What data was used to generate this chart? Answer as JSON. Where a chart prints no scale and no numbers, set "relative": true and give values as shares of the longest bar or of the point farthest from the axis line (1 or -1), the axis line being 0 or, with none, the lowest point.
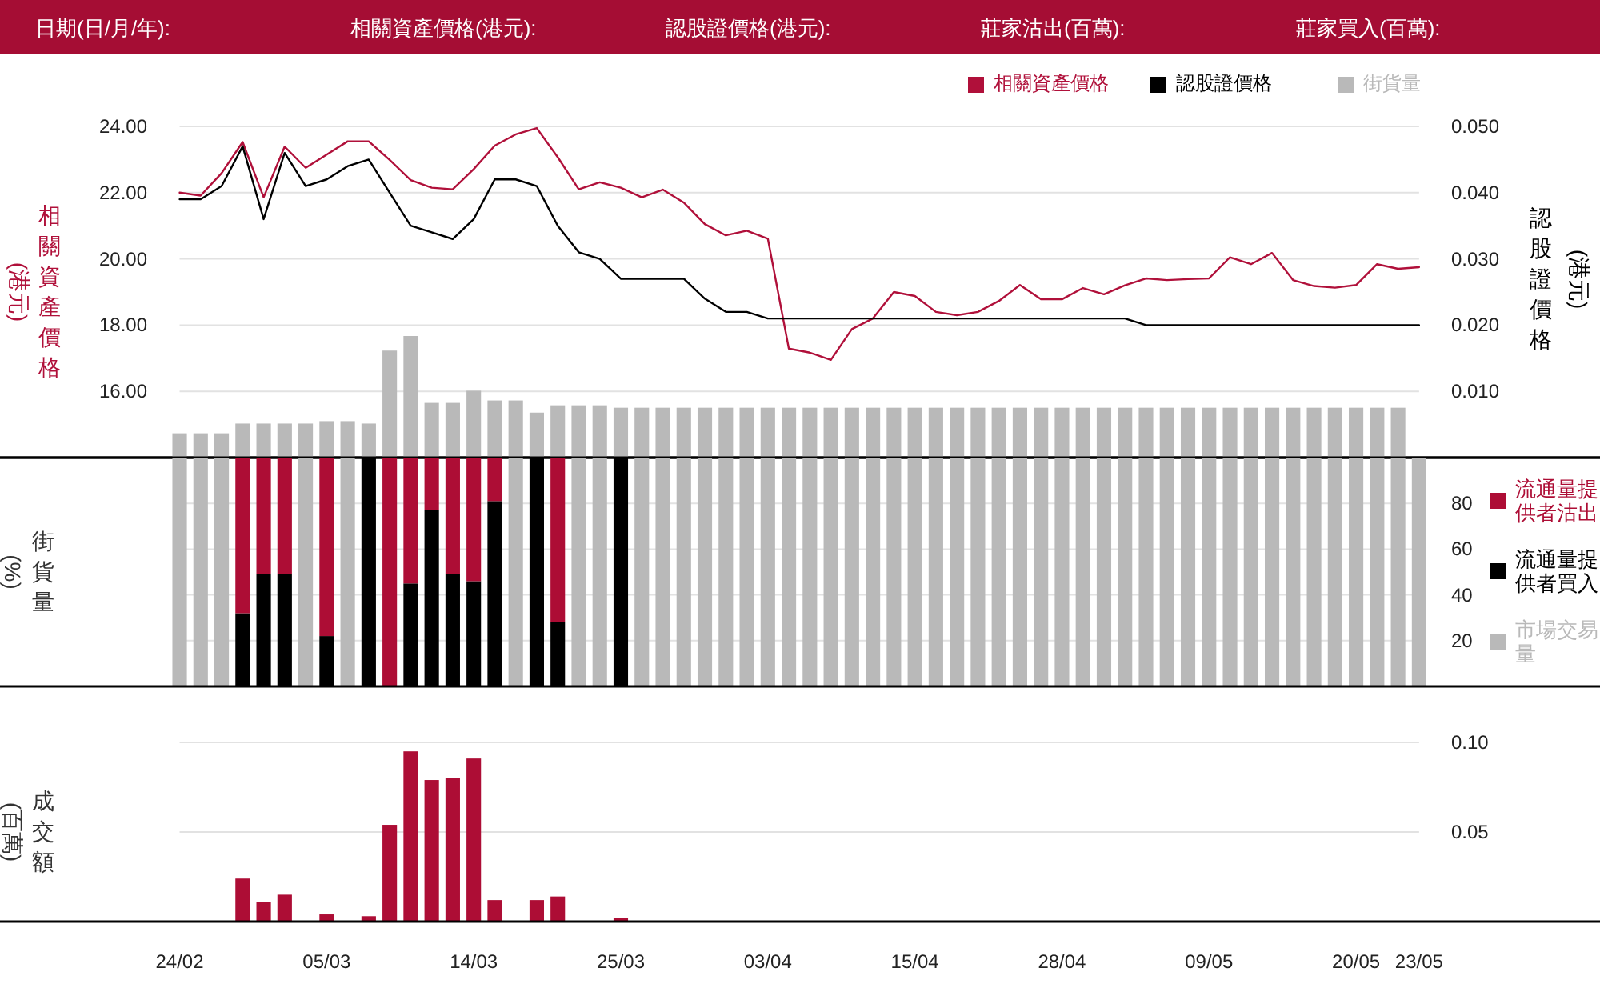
{
  "chart_data": [
    {
      "type": "line",
      "categories": [
        null,
        null,
        null,
        null,
        null,
        null,
        null,
        null,
        null,
        null,
        null,
        null,
        null,
        null,
        null,
        null,
        null,
        null,
        null,
        null,
        null,
        null,
        null,
        null,
        null,
        null,
        null,
        null,
        null,
        null,
        null,
        null,
        null,
        null,
        null,
        null,
        null,
        null,
        null,
        null,
        null,
        null,
        null,
        null,
        null,
        null,
        null,
        null,
        null,
        null,
        null,
        null,
        null,
        null,
        null,
        null,
        null,
        null,
        null,
        null
      ],
      "tick_labels": "y",
      "ylabel": "相關資產價格(港元)",
      "y2label": "認股證價格(港元)",
      "ylim": [
        14,
        24
      ],
      "yticks": [
        {
          "value": 16,
          "label": "16.00"
        },
        {
          "value": 18,
          "label": "18.00"
        },
        {
          "value": 20,
          "label": "20.00"
        },
        {
          "value": 22,
          "label": "22.00"
        },
        {
          "value": 24,
          "label": "24.00"
        }
      ],
      "y2lim": [
        0,
        0.05
      ],
      "y2ticks": [
        {
          "value": 0.01,
          "label": "0.010"
        },
        {
          "value": 0.02,
          "label": "0.020"
        },
        {
          "value": 0.03,
          "label": "0.030"
        },
        {
          "value": 0.04,
          "label": "0.040"
        },
        {
          "value": 0.05,
          "label": "0.050"
        }
      ],
      "grid": "y",
      "legend": "top right",
      "annotations": [
        "日期(日/月/年):",
        "相關資產價格(港元):",
        "認股證價格(港元):",
        "莊家沽出(百萬):",
        "莊家買入(百萬):"
      ],
      "series": [
        {
          "name": "相關資產價格",
          "color": "#b0103a",
          "values": [
            22.0,
            21.91,
            22.59,
            23.53,
            21.86,
            23.39,
            22.75,
            23.15,
            23.55,
            23.55,
            22.99,
            22.38,
            22.15,
            22.1,
            22.71,
            23.42,
            23.76,
            23.95,
            23.07,
            22.1,
            22.31,
            22.15,
            21.86,
            22.09,
            21.7,
            21.05,
            20.71,
            20.85,
            20.61,
            17.29,
            17.17,
            16.95,
            17.88,
            18.2,
            19.0,
            18.88,
            18.4,
            18.3,
            18.4,
            18.73,
            19.21,
            18.78,
            18.78,
            19.12,
            18.93,
            19.2,
            19.41,
            19.36,
            19.39,
            19.41,
            20.05,
            19.84,
            20.18,
            19.36,
            19.18,
            19.13,
            19.21,
            19.84,
            19.7,
            19.75
          ]
        },
        {
          "name": "認股證價格",
          "color": "#000000",
          "axis": "y2",
          "values": [
            0.039,
            0.039,
            0.041,
            0.047,
            0.036,
            0.046,
            0.041,
            0.042,
            0.044,
            0.045,
            0.04,
            0.035,
            0.034,
            0.033,
            0.036,
            0.042,
            0.042,
            0.041,
            0.035,
            0.031,
            0.03,
            0.027,
            0.027,
            0.027,
            0.027,
            0.024,
            0.022,
            0.022,
            0.021,
            0.021,
            0.021,
            0.021,
            0.021,
            0.021,
            0.021,
            0.021,
            0.021,
            0.021,
            0.021,
            0.021,
            0.021,
            0.021,
            0.021,
            0.021,
            0.021,
            0.021,
            0.02,
            0.02,
            0.02,
            0.02,
            0.02,
            0.02,
            0.02,
            0.02,
            0.02,
            0.02,
            0.02,
            0.02,
            0.02,
            0.02
          ]
        }
      ]
    },
    {
      "type": "bar",
      "relative": true,
      "categories": [
        null,
        null,
        null,
        null,
        null,
        null,
        null,
        null,
        null,
        null,
        null,
        null,
        null,
        null,
        null,
        null,
        null,
        null,
        null,
        null,
        null,
        null,
        null,
        null,
        null,
        null,
        null,
        null,
        null,
        null,
        null,
        null,
        null,
        null,
        null,
        null,
        null,
        null,
        null,
        null,
        null,
        null,
        null,
        null,
        null,
        null,
        null,
        null,
        null,
        null,
        null,
        null,
        null,
        null,
        null,
        null,
        null,
        null,
        null,
        null
      ],
      "tick_labels": false,
      "legend": "top right",
      "series": [
        {
          "name": "街貨量",
          "color": "#b9b9b9",
          "values": [
            0.2,
            0.2,
            0.2,
            0.28,
            0.28,
            0.28,
            0.28,
            0.3,
            0.3,
            0.28,
            0.88,
            1,
            0.45,
            0.45,
            0.55,
            0.47,
            0.47,
            0.37,
            0.43,
            0.43,
            0.43,
            0.41,
            0.41,
            0.41,
            0.41,
            0.41,
            0.41,
            0.41,
            0.41,
            0.41,
            0.41,
            0.41,
            0.41,
            0.41,
            0.41,
            0.41,
            0.41,
            0.41,
            0.41,
            0.41,
            0.41,
            0.41,
            0.41,
            0.41,
            0.41,
            0.41,
            0.41,
            0.41,
            0.41,
            0.41,
            0.41,
            0.41,
            0.41,
            0.41,
            0.41,
            0.41,
            0.41,
            0.41,
            0.41,
            null
          ]
        }
      ]
    },
    {
      "type": "bar",
      "stacked": true,
      "categories": [
        null,
        null,
        null,
        null,
        null,
        null,
        null,
        null,
        null,
        null,
        null,
        null,
        null,
        null,
        null,
        null,
        null,
        null,
        null,
        null,
        null,
        null,
        null,
        null,
        null,
        null,
        null,
        null,
        null,
        null,
        null,
        null,
        null,
        null,
        null,
        null,
        null,
        null,
        null,
        null,
        null,
        null,
        null,
        null,
        null,
        null,
        null,
        null,
        null,
        null,
        null,
        null,
        null,
        null,
        null,
        null,
        null,
        null,
        null,
        null
      ],
      "tick_labels": "y",
      "ylabel": "街貨量(%)",
      "ylim": [
        0,
        100
      ],
      "yticks": [
        20,
        40,
        60,
        80
      ],
      "grid": "y",
      "legend": "right",
      "series": [
        {
          "name": "市場交易量",
          "color": "#b9b9b9",
          "values": [
            100,
            100,
            100,
            null,
            null,
            null,
            100,
            null,
            100,
            null,
            null,
            null,
            null,
            null,
            null,
            null,
            100,
            null,
            null,
            100,
            100,
            null,
            100,
            100,
            100,
            100,
            100,
            100,
            100,
            100,
            100,
            100,
            100,
            100,
            100,
            100,
            100,
            100,
            100,
            100,
            100,
            100,
            100,
            100,
            100,
            100,
            100,
            100,
            100,
            100,
            100,
            100,
            100,
            100,
            100,
            100,
            100,
            100,
            100,
            100
          ]
        },
        {
          "name": "流通量提供者買入",
          "color": "#000000",
          "values": [
            null,
            null,
            null,
            32,
            49,
            49,
            null,
            22,
            null,
            100,
            null,
            45,
            77,
            49,
            46,
            81,
            null,
            100,
            28,
            null,
            null,
            100,
            null,
            null,
            null,
            null,
            null,
            null,
            null,
            null,
            null,
            null,
            null,
            null,
            null,
            null,
            null,
            null,
            null,
            null,
            null,
            null,
            null,
            null,
            null,
            null,
            null,
            null,
            null,
            null,
            null,
            null,
            null,
            null,
            null,
            null,
            null,
            null,
            null,
            null
          ]
        },
        {
          "name": "流通量提供者沽出",
          "color": "#ad0d35",
          "values": [
            null,
            null,
            null,
            68,
            51,
            51,
            null,
            78,
            null,
            null,
            100,
            55,
            23,
            51,
            54,
            19,
            null,
            null,
            72,
            null,
            null,
            null,
            null,
            null,
            null,
            null,
            null,
            null,
            null,
            null,
            null,
            null,
            null,
            null,
            null,
            null,
            null,
            null,
            null,
            null,
            null,
            null,
            null,
            null,
            null,
            null,
            null,
            null,
            null,
            null,
            null,
            null,
            null,
            null,
            null,
            null,
            null,
            null,
            null,
            null
          ]
        }
      ]
    },
    {
      "type": "bar",
      "categories": [
        "24/02",
        null,
        null,
        null,
        null,
        null,
        null,
        "05/03",
        null,
        null,
        null,
        null,
        null,
        null,
        "14/03",
        null,
        null,
        null,
        null,
        null,
        null,
        "25/03",
        null,
        null,
        null,
        null,
        null,
        null,
        "03/04",
        null,
        null,
        null,
        null,
        null,
        null,
        "15/04",
        null,
        null,
        null,
        null,
        null,
        null,
        "28/04",
        null,
        null,
        null,
        null,
        null,
        null,
        "09/05",
        null,
        null,
        null,
        null,
        null,
        null,
        "20/05",
        null,
        null,
        "23/05"
      ],
      "ylabel": "成交額(百萬)",
      "ylim": [
        0,
        0.1
      ],
      "yticks": [
        {
          "value": 0.05,
          "label": "0.05"
        },
        {
          "value": 0.1,
          "label": "0.10"
        }
      ],
      "grid": "y",
      "color": "#ad0d35",
      "values": [
        null,
        null,
        null,
        0.024,
        0.011,
        0.015,
        null,
        0.004,
        null,
        0.003,
        0.054,
        0.095,
        0.079,
        0.08,
        0.091,
        0.012,
        null,
        0.012,
        0.014,
        null,
        null,
        0.002,
        null,
        null,
        null,
        null,
        null,
        null,
        null,
        null,
        null,
        null,
        null,
        null,
        null,
        null,
        null,
        null,
        null,
        null,
        null,
        null,
        null,
        null,
        null,
        null,
        null,
        null,
        null,
        null,
        null,
        null,
        null,
        null,
        null,
        null,
        null,
        null,
        null,
        null
      ]
    }
  ]
}
